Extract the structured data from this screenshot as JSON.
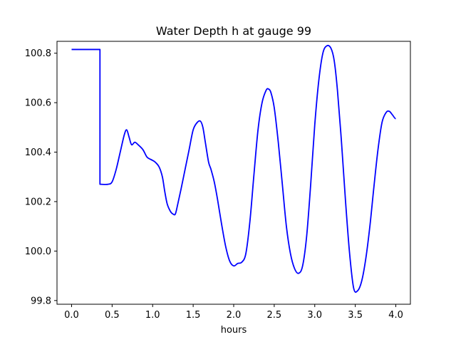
{
  "chart_data": {
    "type": "line",
    "title": "Water Depth h at gauge 99",
    "xlabel": "hours",
    "ylabel": "",
    "xlim": [
      -0.18,
      4.18
    ],
    "ylim": [
      99.785,
      100.848
    ],
    "xticks": [
      0.0,
      0.5,
      1.0,
      1.5,
      2.0,
      2.5,
      3.0,
      3.5,
      4.0
    ],
    "xtick_labels": [
      "0.0",
      "0.5",
      "1.0",
      "1.5",
      "2.0",
      "2.5",
      "3.0",
      "3.5",
      "4.0"
    ],
    "yticks": [
      99.8,
      100.0,
      100.2,
      100.4,
      100.6,
      100.8
    ],
    "ytick_labels": [
      "99.8",
      "100.0",
      "100.2",
      "100.4",
      "100.6",
      "100.8"
    ],
    "grid": false,
    "legend": "none",
    "series": [
      {
        "color": "#0000ff",
        "x": [
          0.0,
          0.35,
          0.35,
          0.36,
          0.45,
          0.5,
          0.55,
          0.6,
          0.65,
          0.68,
          0.71,
          0.74,
          0.78,
          0.82,
          0.88,
          0.93,
          0.98,
          1.03,
          1.08,
          1.12,
          1.15,
          1.18,
          1.22,
          1.25,
          1.28,
          1.31,
          1.35,
          1.4,
          1.45,
          1.5,
          1.55,
          1.59,
          1.62,
          1.65,
          1.69,
          1.72,
          1.76,
          1.8,
          1.85,
          1.9,
          1.95,
          2.0,
          2.05,
          2.1,
          2.15,
          2.2,
          2.25,
          2.3,
          2.35,
          2.4,
          2.43,
          2.46,
          2.5,
          2.55,
          2.6,
          2.65,
          2.7,
          2.75,
          2.8,
          2.85,
          2.9,
          2.95,
          3.0,
          3.05,
          3.1,
          3.15,
          3.2,
          3.24,
          3.28,
          3.33,
          3.38,
          3.43,
          3.48,
          3.53,
          3.58,
          3.63,
          3.68,
          3.73,
          3.78,
          3.83,
          3.88,
          3.92,
          3.96,
          4.0
        ],
        "y": [
          100.815,
          100.815,
          100.27,
          100.27,
          100.27,
          100.28,
          100.33,
          100.4,
          100.47,
          100.49,
          100.46,
          100.43,
          100.44,
          100.43,
          100.41,
          100.38,
          100.37,
          100.36,
          100.34,
          100.3,
          100.24,
          100.19,
          100.16,
          100.15,
          100.15,
          100.19,
          100.25,
          100.33,
          100.41,
          100.49,
          100.52,
          100.525,
          100.5,
          100.44,
          100.36,
          100.33,
          100.28,
          100.21,
          100.11,
          100.02,
          99.96,
          99.94,
          99.95,
          99.955,
          99.99,
          100.12,
          100.31,
          100.49,
          100.6,
          100.65,
          100.655,
          100.64,
          100.58,
          100.44,
          100.27,
          100.1,
          99.99,
          99.93,
          99.91,
          99.94,
          100.06,
          100.27,
          100.51,
          100.69,
          100.8,
          100.83,
          100.82,
          100.77,
          100.65,
          100.44,
          100.2,
          99.99,
          99.85,
          99.84,
          99.88,
          99.97,
          100.1,
          100.26,
          100.41,
          100.52,
          100.56,
          100.565,
          100.55,
          100.535
        ]
      }
    ]
  }
}
